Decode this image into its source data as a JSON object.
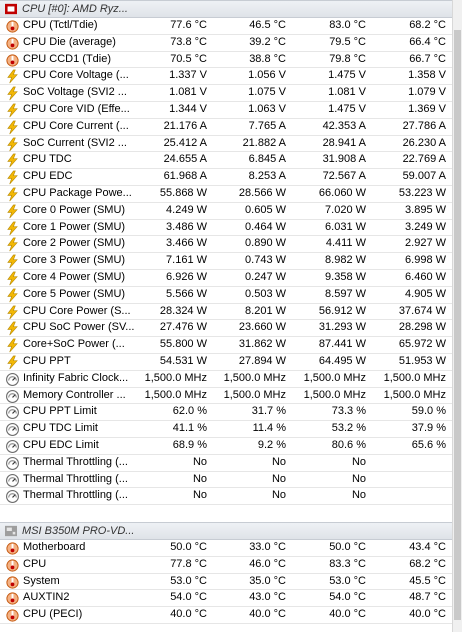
{
  "groups": [
    {
      "title": "CPU [#0]: AMD Ryz...",
      "icon": "cpu-chip-icon",
      "rows": [
        {
          "icon": "thermometer-icon",
          "label": "CPU (Tctl/Tdie)",
          "values": [
            "77.6 °C",
            "46.5 °C",
            "83.0 °C",
            "68.2 °C"
          ]
        },
        {
          "icon": "thermometer-icon",
          "label": "CPU Die (average)",
          "values": [
            "73.8 °C",
            "39.2 °C",
            "79.5 °C",
            "66.4 °C"
          ]
        },
        {
          "icon": "thermometer-icon",
          "label": "CPU CCD1 (Tdie)",
          "values": [
            "70.5 °C",
            "38.8 °C",
            "79.8 °C",
            "66.7 °C"
          ]
        },
        {
          "icon": "lightning-icon",
          "label": "CPU Core Voltage (...",
          "values": [
            "1.337 V",
            "1.056 V",
            "1.475 V",
            "1.358 V"
          ]
        },
        {
          "icon": "lightning-icon",
          "label": "SoC Voltage (SVI2 ...",
          "values": [
            "1.081 V",
            "1.075 V",
            "1.081 V",
            "1.079 V"
          ]
        },
        {
          "icon": "lightning-icon",
          "label": "CPU Core VID (Effe...",
          "values": [
            "1.344 V",
            "1.063 V",
            "1.475 V",
            "1.369 V"
          ]
        },
        {
          "icon": "lightning-icon",
          "label": "CPU Core Current (...",
          "values": [
            "21.176 A",
            "7.765 A",
            "42.353 A",
            "27.786 A"
          ]
        },
        {
          "icon": "lightning-icon",
          "label": "SoC Current (SVI2 ...",
          "values": [
            "25.412 A",
            "21.882 A",
            "28.941 A",
            "26.230 A"
          ]
        },
        {
          "icon": "lightning-icon",
          "label": "CPU TDC",
          "values": [
            "24.655 A",
            "6.845 A",
            "31.908 A",
            "22.769 A"
          ]
        },
        {
          "icon": "lightning-icon",
          "label": "CPU EDC",
          "values": [
            "61.968 A",
            "8.253 A",
            "72.567 A",
            "59.007 A"
          ]
        },
        {
          "icon": "lightning-icon",
          "label": "CPU Package Powe...",
          "values": [
            "55.868 W",
            "28.566 W",
            "66.060 W",
            "53.223 W"
          ]
        },
        {
          "icon": "lightning-icon",
          "label": "Core 0 Power (SMU)",
          "values": [
            "4.249 W",
            "0.605 W",
            "7.020 W",
            "3.895 W"
          ]
        },
        {
          "icon": "lightning-icon",
          "label": "Core 1 Power (SMU)",
          "values": [
            "3.486 W",
            "0.464 W",
            "6.031 W",
            "3.249 W"
          ]
        },
        {
          "icon": "lightning-icon",
          "label": "Core 2 Power (SMU)",
          "values": [
            "3.466 W",
            "0.890 W",
            "4.411 W",
            "2.927 W"
          ]
        },
        {
          "icon": "lightning-icon",
          "label": "Core 3 Power (SMU)",
          "values": [
            "7.161 W",
            "0.743 W",
            "8.982 W",
            "6.998 W"
          ]
        },
        {
          "icon": "lightning-icon",
          "label": "Core 4 Power (SMU)",
          "values": [
            "6.926 W",
            "0.247 W",
            "9.358 W",
            "6.460 W"
          ]
        },
        {
          "icon": "lightning-icon",
          "label": "Core 5 Power (SMU)",
          "values": [
            "5.566 W",
            "0.503 W",
            "8.597 W",
            "4.905 W"
          ]
        },
        {
          "icon": "lightning-icon",
          "label": "CPU Core Power (S...",
          "values": [
            "28.324 W",
            "8.201 W",
            "56.912 W",
            "37.674 W"
          ]
        },
        {
          "icon": "lightning-icon",
          "label": "CPU SoC Power (SV...",
          "values": [
            "27.476 W",
            "23.660 W",
            "31.293 W",
            "28.298 W"
          ]
        },
        {
          "icon": "lightning-icon",
          "label": "Core+SoC Power (...",
          "values": [
            "55.800 W",
            "31.862 W",
            "87.441 W",
            "65.972 W"
          ]
        },
        {
          "icon": "lightning-icon",
          "label": "CPU PPT",
          "values": [
            "54.531 W",
            "27.894 W",
            "64.495 W",
            "51.953 W"
          ]
        },
        {
          "icon": "gauge-icon",
          "label": "Infinity Fabric Clock...",
          "values": [
            "1,500.0 MHz",
            "1,500.0 MHz",
            "1,500.0 MHz",
            "1,500.0 MHz"
          ]
        },
        {
          "icon": "gauge-icon",
          "label": "Memory Controller ...",
          "values": [
            "1,500.0 MHz",
            "1,500.0 MHz",
            "1,500.0 MHz",
            "1,500.0 MHz"
          ]
        },
        {
          "icon": "gauge-icon",
          "label": "CPU PPT Limit",
          "values": [
            "62.0 %",
            "31.7 %",
            "73.3 %",
            "59.0 %"
          ]
        },
        {
          "icon": "gauge-icon",
          "label": "CPU TDC Limit",
          "values": [
            "41.1 %",
            "11.4 %",
            "53.2 %",
            "37.9 %"
          ]
        },
        {
          "icon": "gauge-icon",
          "label": "CPU EDC Limit",
          "values": [
            "68.9 %",
            "9.2 %",
            "80.6 %",
            "65.6 %"
          ]
        },
        {
          "icon": "gauge-icon",
          "label": "Thermal Throttling (...",
          "values": [
            "No",
            "No",
            "No",
            ""
          ]
        },
        {
          "icon": "gauge-icon",
          "label": "Thermal Throttling (...",
          "values": [
            "No",
            "No",
            "No",
            ""
          ]
        },
        {
          "icon": "gauge-icon",
          "label": "Thermal Throttling (...",
          "values": [
            "No",
            "No",
            "No",
            ""
          ]
        }
      ]
    },
    {
      "title": "MSI B350M PRO-VD...",
      "icon": "motherboard-icon",
      "rows": [
        {
          "icon": "thermometer-icon",
          "label": "Motherboard",
          "values": [
            "50.0 °C",
            "33.0 °C",
            "50.0 °C",
            "43.4 °C"
          ]
        },
        {
          "icon": "thermometer-icon",
          "label": "CPU",
          "values": [
            "77.8 °C",
            "46.0 °C",
            "83.3 °C",
            "68.2 °C"
          ]
        },
        {
          "icon": "thermometer-icon",
          "label": "System",
          "values": [
            "53.0 °C",
            "35.0 °C",
            "53.0 °C",
            "45.5 °C"
          ]
        },
        {
          "icon": "thermometer-icon",
          "label": "AUXTIN2",
          "values": [
            "54.0 °C",
            "43.0 °C",
            "54.0 °C",
            "48.7 °C"
          ]
        },
        {
          "icon": "thermometer-icon",
          "label": "CPU (PECI)",
          "values": [
            "40.0 °C",
            "40.0 °C",
            "40.0 °C",
            "40.0 °C"
          ]
        }
      ]
    }
  ]
}
